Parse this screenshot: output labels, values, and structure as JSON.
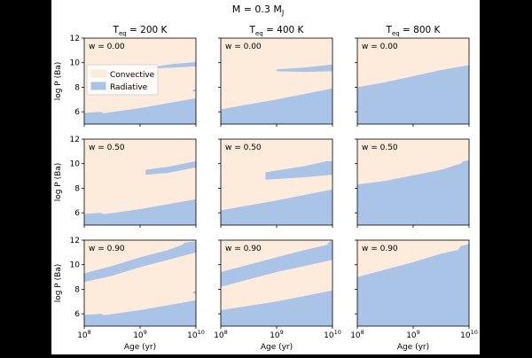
{
  "figure": {
    "title": "M = 0.3 M",
    "title_sub": "J",
    "colors": {
      "convective": "#fdebdc",
      "radiative": "#a9c4e6",
      "frame": "#000000"
    }
  },
  "chart_data": {
    "type": "area",
    "title": "M = 0.3 MJ",
    "xlabel": "Age (yr)",
    "ylabel": "log P (Ba)",
    "xscale": "log",
    "xlim": [
      100000000.0,
      10000000000.0
    ],
    "ylim": [
      5,
      12
    ],
    "xticks": [
      {
        "base": "10",
        "exp": "8",
        "value": 8
      },
      {
        "base": "10",
        "exp": "9",
        "value": 9
      },
      {
        "base": "10",
        "exp": "10",
        "value": 10
      }
    ],
    "yticks": [
      6,
      8,
      10,
      12
    ],
    "legend": {
      "location": "upper-left",
      "panel": "0-0",
      "entries": [
        {
          "label": "Convective",
          "color": "#fdebdc"
        },
        {
          "label": "Radiative",
          "color": "#a9c4e6"
        }
      ]
    },
    "columns": [
      {
        "label_base": "T",
        "label_sub": "eq",
        "label_value": " = 200 K"
      },
      {
        "label_base": "T",
        "label_sub": "eq",
        "label_value": " = 400 K"
      },
      {
        "label_base": "T",
        "label_sub": "eq",
        "label_value": " = 800 K"
      }
    ],
    "rows": [
      {
        "label": "w = 0.00"
      },
      {
        "label": "w = 0.50"
      },
      {
        "label": "w = 0.90"
      }
    ],
    "panels": [
      [
        {
          "lower_boundary": [
            [
              8,
              5.9
            ],
            [
              8.3,
              6.0
            ],
            [
              8.35,
              5.88
            ],
            [
              9,
              6.3
            ],
            [
              10,
              7.1
            ]
          ],
          "radiative_zones": [
            {
              "top": [
                [
                  9.05,
                  9.55
                ],
                [
                  9.6,
                  9.9
                ],
                [
                  10,
                  10.05
                ]
              ],
              "bottom": [
                [
                  10,
                  9.7
                ],
                [
                  9.6,
                  9.6
                ],
                [
                  9.1,
                  9.5
                ]
              ]
            },
            {
              "top": [
                [
                  9.95,
                  7.8
                ],
                [
                  10,
                  7.85
                ]
              ],
              "bottom": [
                [
                  10,
                  7.65
                ],
                [
                  9.95,
                  7.65
                ]
              ]
            }
          ]
        },
        {
          "lower_boundary": [
            [
              8,
              6.2
            ],
            [
              9,
              7.0
            ],
            [
              10,
              7.9
            ]
          ],
          "radiative_zones": [
            {
              "top": [
                [
                  9.0,
                  9.45
                ],
                [
                  9.5,
                  9.6
                ],
                [
                  10,
                  9.85
                ]
              ],
              "bottom": [
                [
                  10,
                  9.3
                ],
                [
                  9.5,
                  9.25
                ],
                [
                  9.0,
                  9.3
                ]
              ]
            }
          ]
        },
        {
          "lower_boundary": [
            [
              8,
              8.0
            ],
            [
              8.5,
              8.4
            ],
            [
              9,
              8.9
            ],
            [
              9.5,
              9.4
            ],
            [
              10,
              9.8
            ]
          ],
          "radiative_zones": []
        }
      ],
      [
        {
          "lower_boundary": [
            [
              8,
              5.9
            ],
            [
              8.3,
              6.0
            ],
            [
              8.35,
              5.88
            ],
            [
              9,
              6.3
            ],
            [
              10,
              7.1
            ]
          ],
          "radiative_zones": [
            {
              "top": [
                [
                  9.1,
                  9.5
                ],
                [
                  9.5,
                  9.75
                ],
                [
                  10,
                  10.2
                ]
              ],
              "bottom": [
                [
                  10,
                  9.7
                ],
                [
                  9.5,
                  9.25
                ],
                [
                  9.1,
                  9.1
                ]
              ]
            }
          ]
        },
        {
          "lower_boundary": [
            [
              8,
              6.2
            ],
            [
              9,
              7.0
            ],
            [
              10,
              7.9
            ]
          ],
          "radiative_zones": [
            {
              "top": [
                [
                  8.8,
                  9.3
                ],
                [
                  9.5,
                  9.8
                ],
                [
                  9.9,
                  10.2
                ],
                [
                  10,
                  10.2
                ]
              ],
              "bottom": [
                [
                  10,
                  9.1
                ],
                [
                  9.5,
                  8.9
                ],
                [
                  8.8,
                  8.7
                ]
              ]
            }
          ]
        },
        {
          "lower_boundary": [
            [
              8,
              8.3
            ],
            [
              8.5,
              8.6
            ],
            [
              9,
              9.05
            ],
            [
              9.5,
              9.5
            ],
            [
              9.85,
              10.0
            ],
            [
              9.9,
              10.2
            ],
            [
              10,
              10.3
            ]
          ],
          "radiative_zones": []
        }
      ],
      [
        {
          "lower_boundary": [
            [
              8,
              5.9
            ],
            [
              8.3,
              6.0
            ],
            [
              8.35,
              5.88
            ],
            [
              9,
              6.3
            ],
            [
              10,
              7.1
            ]
          ],
          "radiative_zones": [
            {
              "top": [
                [
                  8,
                  9.3
                ],
                [
                  8.5,
                  9.9
                ],
                [
                  9,
                  10.6
                ],
                [
                  9.5,
                  11.2
                ],
                [
                  9.75,
                  11.6
                ],
                [
                  9.8,
                  11.8
                ],
                [
                  10,
                  11.9
                ]
              ],
              "bottom": [
                [
                  10,
                  11.0
                ],
                [
                  9.5,
                  10.4
                ],
                [
                  9,
                  9.8
                ],
                [
                  8.5,
                  9.1
                ],
                [
                  8,
                  8.6
                ]
              ]
            },
            {
              "top": [
                [
                  9.95,
                  7.8
                ],
                [
                  10,
                  7.85
                ]
              ],
              "bottom": [
                [
                  10,
                  7.65
                ],
                [
                  9.95,
                  7.65
                ]
              ]
            }
          ]
        },
        {
          "lower_boundary": [
            [
              8,
              6.3
            ],
            [
              9,
              7.0
            ],
            [
              10,
              7.9
            ]
          ],
          "radiative_zones": [
            {
              "top": [
                [
                  8,
                  9.4
                ],
                [
                  8.5,
                  10.0
                ],
                [
                  9,
                  10.6
                ],
                [
                  9.5,
                  11.2
                ],
                [
                  9.9,
                  11.6
                ],
                [
                  9.95,
                  11.9
                ],
                [
                  10,
                  11.9
                ]
              ],
              "bottom": [
                [
                  10,
                  10.4
                ],
                [
                  9.5,
                  9.9
                ],
                [
                  9,
                  9.4
                ],
                [
                  8.5,
                  8.8
                ],
                [
                  8,
                  8.2
                ]
              ]
            }
          ]
        },
        {
          "lower_boundary": [
            [
              8,
              9.0
            ],
            [
              8.5,
              9.6
            ],
            [
              9,
              10.2
            ],
            [
              9.5,
              10.9
            ],
            [
              9.8,
              11.2
            ],
            [
              9.85,
              11.5
            ],
            [
              10,
              11.7
            ]
          ],
          "radiative_zones": []
        }
      ]
    ]
  }
}
